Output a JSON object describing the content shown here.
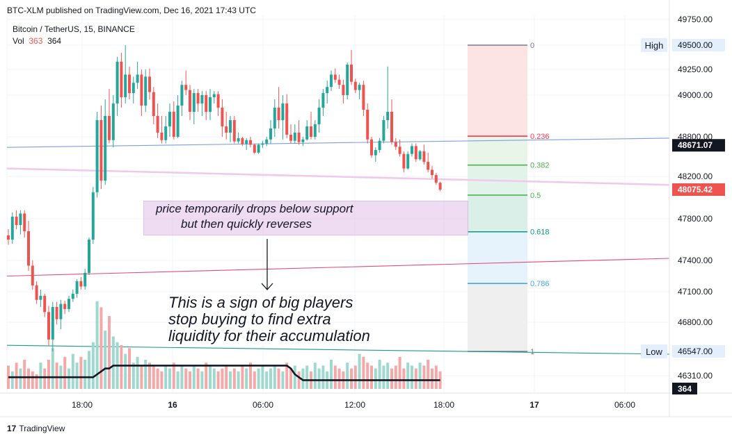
{
  "header": {
    "published": "BTC-XLM published on TradingView.com, Dec 16, 2021 17:43 UTC",
    "symbol": "Bitcoin / TetherUS, 15, BINANCE",
    "vol_label": "Vol",
    "vol_value_1": "363",
    "vol_value_2": "364"
  },
  "brand": {
    "logo": "17",
    "name": "TradingView"
  },
  "annotations": {
    "box_line_1": "price temporarily drops below support",
    "box_line_2": "but then quickly reverses",
    "text_line_1": "This is a sign of big players",
    "text_line_2": "stop buying to find extra",
    "text_line_3": "liquidity for their accumulation"
  },
  "colors": {
    "up": "#26a69a",
    "down": "#ef5350",
    "vol_up": "#9ed8cf",
    "vol_down": "#f5a8a8",
    "current_price_badge": "#ef5350",
    "last_price_badge": "#131722"
  },
  "chart_data": {
    "type": "candlestick",
    "symbol": "BTCUSDT",
    "interval": "15",
    "y_axis": {
      "ticks": [
        49750,
        49500,
        49250,
        49000,
        48800,
        48200,
        47800,
        47400,
        47100,
        46800,
        46310
      ],
      "tick_labels": [
        "49750.00",
        "49500.00",
        "49250.00",
        "49000.00",
        "48800.00",
        "48200.00",
        "47800.00",
        "47400.00",
        "47100.00",
        "46800.00",
        "46310.00"
      ]
    },
    "x_axis": {
      "ticks": [
        "18:00",
        "16",
        "06:00",
        "12:00",
        "18:00",
        "17",
        "06:00"
      ],
      "bold_ticks": [
        "16",
        "17"
      ]
    },
    "price_labels": [
      {
        "label": "High",
        "value": "49500.00",
        "price": 49500
      },
      {
        "label": "",
        "value": "48671.07",
        "price": 48671.07
      },
      {
        "label": "",
        "value": "48075.42",
        "price": 48075.42
      },
      {
        "label": "Low",
        "value": "46547.00",
        "price": 46547
      }
    ],
    "volume_last": "364",
    "fibonacci": {
      "high": 49500,
      "low": 46547,
      "levels": [
        {
          "ratio": 0,
          "label": "0",
          "color": "#787b86"
        },
        {
          "ratio": 0.236,
          "label": "0.236",
          "color": "#f23645"
        },
        {
          "ratio": 0.382,
          "label": "0.382",
          "color": "#4caf50"
        },
        {
          "ratio": 0.5,
          "label": "0.5",
          "color": "#4caf50"
        },
        {
          "ratio": 0.618,
          "label": "0.618",
          "color": "#089981"
        },
        {
          "ratio": 0.786,
          "label": "0.786",
          "color": "#42a5f5"
        },
        {
          "ratio": 1,
          "label": "1",
          "color": "#787b86"
        }
      ],
      "zones": [
        "#fde4e4",
        "#eaf5e9",
        "#e2f3ea",
        "#dbefe9",
        "#e6f2fc",
        "#efeff0"
      ]
    },
    "candles": [
      {
        "o": 47640,
        "h": 47700,
        "l": 47550,
        "c": 47600
      },
      {
        "o": 47600,
        "h": 47860,
        "l": 47560,
        "c": 47820
      },
      {
        "o": 47820,
        "h": 47880,
        "l": 47700,
        "c": 47740
      },
      {
        "o": 47740,
        "h": 47880,
        "l": 47650,
        "c": 47850
      },
      {
        "o": 47850,
        "h": 47880,
        "l": 47620,
        "c": 47680
      },
      {
        "o": 47680,
        "h": 47780,
        "l": 47300,
        "c": 47350
      },
      {
        "o": 47350,
        "h": 47400,
        "l": 47120,
        "c": 47160
      },
      {
        "o": 47160,
        "h": 47200,
        "l": 46980,
        "c": 47020
      },
      {
        "o": 47020,
        "h": 47120,
        "l": 46950,
        "c": 47060
      },
      {
        "o": 47060,
        "h": 47080,
        "l": 46850,
        "c": 46900
      },
      {
        "o": 46900,
        "h": 46960,
        "l": 46600,
        "c": 46650
      },
      {
        "o": 46650,
        "h": 47000,
        "l": 46547,
        "c": 46950
      },
      {
        "o": 46950,
        "h": 47000,
        "l": 46780,
        "c": 46830
      },
      {
        "o": 46830,
        "h": 47020,
        "l": 46740,
        "c": 46980
      },
      {
        "o": 46980,
        "h": 47010,
        "l": 46880,
        "c": 46930
      },
      {
        "o": 46930,
        "h": 47060,
        "l": 46900,
        "c": 47030
      },
      {
        "o": 47030,
        "h": 47120,
        "l": 47000,
        "c": 47080
      },
      {
        "o": 47080,
        "h": 47220,
        "l": 47040,
        "c": 47200
      },
      {
        "o": 47200,
        "h": 47240,
        "l": 47120,
        "c": 47150
      },
      {
        "o": 47150,
        "h": 47320,
        "l": 47120,
        "c": 47280
      },
      {
        "o": 47280,
        "h": 47620,
        "l": 47260,
        "c": 47600
      },
      {
        "o": 47600,
        "h": 48100,
        "l": 47560,
        "c": 48050
      },
      {
        "o": 48050,
        "h": 48920,
        "l": 48000,
        "c": 48880
      },
      {
        "o": 48880,
        "h": 48950,
        "l": 48080,
        "c": 48160
      },
      {
        "o": 48160,
        "h": 48980,
        "l": 48120,
        "c": 48900
      },
      {
        "o": 48900,
        "h": 49060,
        "l": 48700,
        "c": 48750
      },
      {
        "o": 48750,
        "h": 49000,
        "l": 48640,
        "c": 48960
      },
      {
        "o": 48960,
        "h": 49380,
        "l": 48900,
        "c": 49330
      },
      {
        "o": 49330,
        "h": 49420,
        "l": 48940,
        "c": 48990
      },
      {
        "o": 48990,
        "h": 49500,
        "l": 48960,
        "c": 49200
      },
      {
        "o": 49200,
        "h": 49280,
        "l": 48980,
        "c": 49020
      },
      {
        "o": 49020,
        "h": 49180,
        "l": 48960,
        "c": 49120
      },
      {
        "o": 49120,
        "h": 49330,
        "l": 49060,
        "c": 49200
      },
      {
        "o": 49200,
        "h": 49250,
        "l": 48900,
        "c": 48950
      },
      {
        "o": 48950,
        "h": 49250,
        "l": 48920,
        "c": 49180
      },
      {
        "o": 49180,
        "h": 49260,
        "l": 48980,
        "c": 49030
      },
      {
        "o": 49030,
        "h": 49080,
        "l": 48860,
        "c": 48900
      },
      {
        "o": 48900,
        "h": 48960,
        "l": 48780,
        "c": 48820
      },
      {
        "o": 48820,
        "h": 48900,
        "l": 48700,
        "c": 48750
      },
      {
        "o": 48750,
        "h": 48900,
        "l": 48700,
        "c": 48850
      },
      {
        "o": 48850,
        "h": 48960,
        "l": 48800,
        "c": 48920
      },
      {
        "o": 48920,
        "h": 48970,
        "l": 48760,
        "c": 48800
      },
      {
        "o": 48800,
        "h": 49000,
        "l": 48780,
        "c": 48950
      },
      {
        "o": 48950,
        "h": 49140,
        "l": 48900,
        "c": 49100
      },
      {
        "o": 49100,
        "h": 49240,
        "l": 49000,
        "c": 49050
      },
      {
        "o": 49050,
        "h": 49100,
        "l": 48880,
        "c": 48920
      },
      {
        "o": 48920,
        "h": 49060,
        "l": 48860,
        "c": 49020
      },
      {
        "o": 49020,
        "h": 49060,
        "l": 48920,
        "c": 48960
      },
      {
        "o": 48960,
        "h": 49040,
        "l": 48900,
        "c": 49000
      },
      {
        "o": 49000,
        "h": 49040,
        "l": 48880,
        "c": 48920
      },
      {
        "o": 48920,
        "h": 49060,
        "l": 48880,
        "c": 48990
      },
      {
        "o": 48990,
        "h": 49040,
        "l": 48960,
        "c": 49010
      },
      {
        "o": 49010,
        "h": 49040,
        "l": 48900,
        "c": 48940
      },
      {
        "o": 48940,
        "h": 48980,
        "l": 48800,
        "c": 48850
      },
      {
        "o": 48850,
        "h": 48920,
        "l": 48760,
        "c": 48820
      },
      {
        "o": 48820,
        "h": 48900,
        "l": 48720,
        "c": 48880
      },
      {
        "o": 48880,
        "h": 48900,
        "l": 48700,
        "c": 48730
      },
      {
        "o": 48730,
        "h": 48820,
        "l": 48700,
        "c": 48780
      },
      {
        "o": 48780,
        "h": 48800,
        "l": 48660,
        "c": 48690
      },
      {
        "o": 48690,
        "h": 48780,
        "l": 48600,
        "c": 48750
      },
      {
        "o": 48750,
        "h": 48800,
        "l": 48640,
        "c": 48680
      },
      {
        "o": 48680,
        "h": 48700,
        "l": 48540,
        "c": 48560
      },
      {
        "o": 48560,
        "h": 48700,
        "l": 48540,
        "c": 48680
      },
      {
        "o": 48680,
        "h": 48740,
        "l": 48630,
        "c": 48700
      },
      {
        "o": 48700,
        "h": 48800,
        "l": 48660,
        "c": 48760
      },
      {
        "o": 48760,
        "h": 48880,
        "l": 48700,
        "c": 48840
      },
      {
        "o": 48840,
        "h": 48980,
        "l": 48800,
        "c": 48940
      },
      {
        "o": 48940,
        "h": 49080,
        "l": 48840,
        "c": 48880
      },
      {
        "o": 48880,
        "h": 49000,
        "l": 48760,
        "c": 48960
      },
      {
        "o": 48960,
        "h": 49010,
        "l": 48780,
        "c": 48810
      },
      {
        "o": 48810,
        "h": 48860,
        "l": 48700,
        "c": 48740
      },
      {
        "o": 48740,
        "h": 48860,
        "l": 48700,
        "c": 48820
      },
      {
        "o": 48820,
        "h": 48880,
        "l": 48680,
        "c": 48720
      },
      {
        "o": 48720,
        "h": 48800,
        "l": 48660,
        "c": 48760
      },
      {
        "o": 48760,
        "h": 48880,
        "l": 48740,
        "c": 48850
      },
      {
        "o": 48850,
        "h": 48920,
        "l": 48760,
        "c": 48800
      },
      {
        "o": 48800,
        "h": 48880,
        "l": 48760,
        "c": 48860
      },
      {
        "o": 48860,
        "h": 48980,
        "l": 48820,
        "c": 48940
      },
      {
        "o": 48940,
        "h": 49060,
        "l": 48900,
        "c": 49020
      },
      {
        "o": 49020,
        "h": 49140,
        "l": 48960,
        "c": 49080
      },
      {
        "o": 49080,
        "h": 49240,
        "l": 49040,
        "c": 49200
      },
      {
        "o": 49200,
        "h": 49260,
        "l": 49120,
        "c": 49150
      },
      {
        "o": 49150,
        "h": 49200,
        "l": 49060,
        "c": 49100
      },
      {
        "o": 49100,
        "h": 49150,
        "l": 48960,
        "c": 49000
      },
      {
        "o": 49000,
        "h": 49320,
        "l": 48980,
        "c": 49300
      },
      {
        "o": 49300,
        "h": 49450,
        "l": 49100,
        "c": 49130
      },
      {
        "o": 49130,
        "h": 49160,
        "l": 49020,
        "c": 49050
      },
      {
        "o": 49050,
        "h": 49120,
        "l": 48980,
        "c": 49100
      },
      {
        "o": 49100,
        "h": 49140,
        "l": 48900,
        "c": 48930
      },
      {
        "o": 48930,
        "h": 48960,
        "l": 48700,
        "c": 48760
      },
      {
        "o": 48760,
        "h": 48800,
        "l": 48480,
        "c": 48520
      },
      {
        "o": 48520,
        "h": 48640,
        "l": 48420,
        "c": 48600
      },
      {
        "o": 48600,
        "h": 48780,
        "l": 48560,
        "c": 48740
      },
      {
        "o": 48740,
        "h": 48900,
        "l": 48700,
        "c": 48880
      },
      {
        "o": 48880,
        "h": 49280,
        "l": 48840,
        "c": 48920
      },
      {
        "o": 48920,
        "h": 48980,
        "l": 48680,
        "c": 48720
      },
      {
        "o": 48720,
        "h": 48780,
        "l": 48600,
        "c": 48650
      },
      {
        "o": 48650,
        "h": 48760,
        "l": 48500,
        "c": 48540
      },
      {
        "o": 48540,
        "h": 48580,
        "l": 48260,
        "c": 48320
      },
      {
        "o": 48320,
        "h": 48580,
        "l": 48300,
        "c": 48540
      },
      {
        "o": 48540,
        "h": 48700,
        "l": 48500,
        "c": 48660
      },
      {
        "o": 48660,
        "h": 48700,
        "l": 48420,
        "c": 48460
      },
      {
        "o": 48460,
        "h": 48600,
        "l": 48440,
        "c": 48580
      },
      {
        "o": 48580,
        "h": 48680,
        "l": 48380,
        "c": 48420
      },
      {
        "o": 48420,
        "h": 48560,
        "l": 48260,
        "c": 48300
      },
      {
        "o": 48300,
        "h": 48360,
        "l": 48180,
        "c": 48220
      },
      {
        "o": 48220,
        "h": 48250,
        "l": 48120,
        "c": 48140
      },
      {
        "o": 48140,
        "h": 48150,
        "l": 48060,
        "c": 48075
      }
    ],
    "volume": [
      8,
      6,
      9,
      7,
      10,
      7,
      6,
      5,
      9,
      7,
      10,
      14,
      9,
      8,
      11,
      7,
      12,
      9,
      11,
      10,
      13,
      16,
      30,
      28,
      20,
      25,
      18,
      16,
      15,
      12,
      14,
      9,
      11,
      8,
      10,
      9,
      8,
      7,
      6,
      8,
      7,
      9,
      6,
      8,
      7,
      6,
      8,
      7,
      6,
      9,
      8,
      7,
      6,
      7,
      8,
      6,
      7,
      6,
      8,
      7,
      9,
      6,
      7,
      8,
      6,
      7,
      8,
      7,
      6,
      9,
      7,
      8,
      6,
      7,
      8,
      6,
      9,
      7,
      8,
      6,
      10,
      8,
      7,
      6,
      9,
      7,
      8,
      12,
      11,
      9,
      8,
      7,
      10,
      8,
      9,
      7,
      8,
      11,
      7,
      9,
      8,
      7,
      9,
      8,
      10,
      7,
      8,
      6
    ],
    "volume_ma": [
      4,
      4,
      4,
      4,
      4,
      4,
      4,
      4,
      4,
      4,
      4,
      4,
      4,
      4,
      4,
      4,
      4,
      4,
      4,
      4,
      4,
      4,
      5,
      6,
      7,
      7,
      8,
      8,
      8,
      8,
      8,
      8,
      8,
      8,
      8,
      8,
      8,
      8,
      8,
      8,
      8,
      8,
      8,
      8,
      8,
      8,
      8,
      8,
      8,
      8,
      8,
      8,
      8,
      8,
      8,
      8,
      8,
      8,
      8,
      8,
      8,
      8,
      8,
      8,
      8,
      8,
      8,
      8,
      8,
      8,
      7,
      5,
      4,
      3,
      3,
      3,
      3,
      3,
      3,
      3,
      3,
      3,
      3,
      3,
      3,
      3,
      3,
      3,
      3,
      3,
      3,
      3,
      3,
      3,
      3,
      3,
      3,
      3,
      3,
      3,
      3,
      3,
      3,
      3,
      3,
      3,
      3,
      3
    ],
    "trendlines": [
      {
        "from": 48640,
        "to": 48780,
        "color": "#7b9fe0"
      },
      {
        "from": 48320,
        "to": 48120,
        "color": "#f0c8ec"
      },
      {
        "from": 47250,
        "to": 47420,
        "color": "#e04c78"
      },
      {
        "from": 46600,
        "to": 46520,
        "color": "#1b9a86"
      }
    ]
  }
}
